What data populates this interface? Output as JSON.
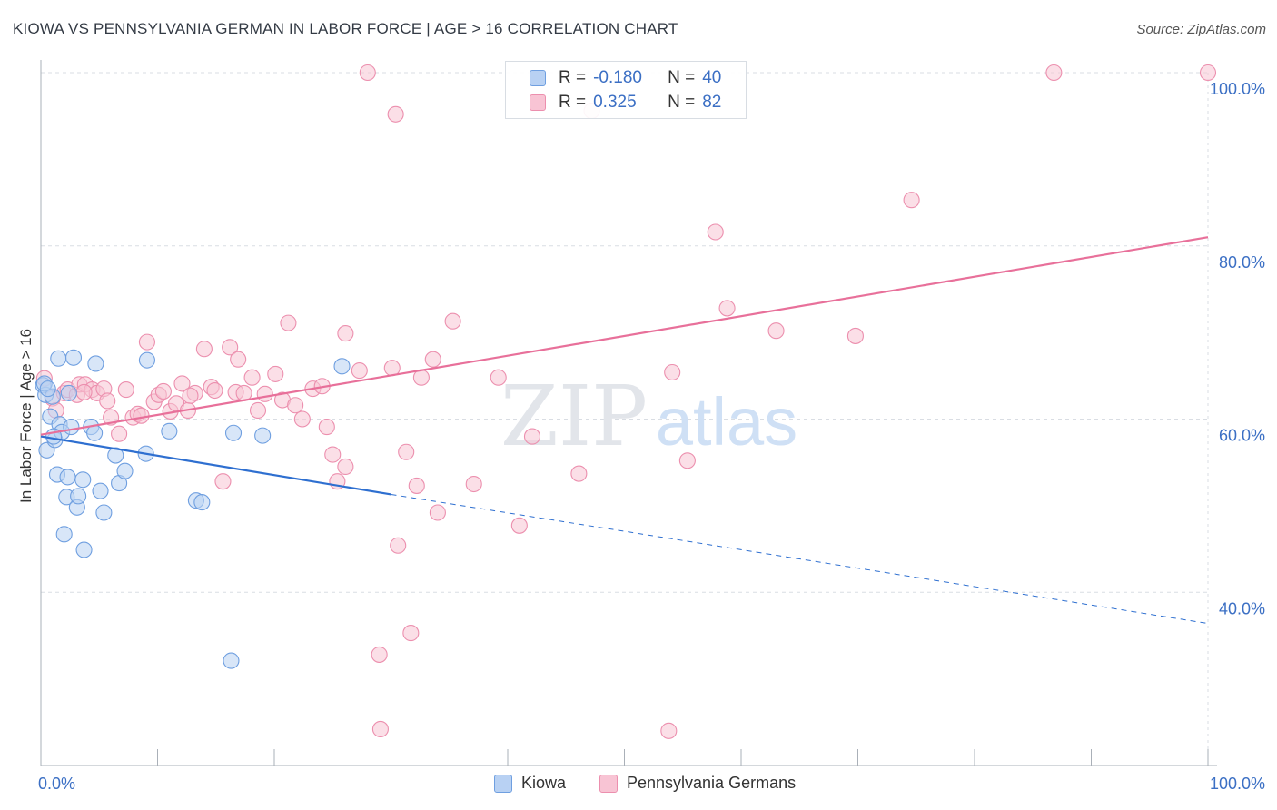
{
  "title": "KIOWA VS PENNSYLVANIA GERMAN IN LABOR FORCE | AGE > 16 CORRELATION CHART",
  "source": "Source: ZipAtlas.com",
  "watermark": {
    "zip": "ZIP",
    "atlas": "atlas"
  },
  "colors": {
    "kiowa_fill": "#b8d1f3",
    "kiowa_stroke": "#6f9fe0",
    "kiowa_line": "#2e6fd0",
    "pg_fill": "#f8c4d4",
    "pg_stroke": "#ec8fae",
    "pg_line": "#e8709a",
    "axis_label": "#3b6fc4",
    "grid": "#d9dde3"
  },
  "legend": {
    "r_label": "R =",
    "n_label": "N =",
    "kiowa": {
      "r": "-0.180",
      "n": "40"
    },
    "pg": {
      "r": "0.325",
      "n": "82"
    }
  },
  "bottom_legend": {
    "kiowa": "Kiowa",
    "pg": "Pennsylvania Germans"
  },
  "chart_data": {
    "type": "scatter",
    "title": "KIOWA VS PENNSYLVANIA GERMAN IN LABOR FORCE | AGE > 16 CORRELATION CHART",
    "ylabel": "In Labor Force | Age > 16",
    "xlabel": "",
    "xlim": [
      0,
      100
    ],
    "ylim": [
      20,
      100
    ],
    "x_tick_labels": [
      "0.0%",
      "100.0%"
    ],
    "y_ticks": [
      40,
      60,
      80,
      100
    ],
    "y_tick_labels": [
      "40.0%",
      "60.0%",
      "80.0%",
      "100.0%"
    ],
    "grid": true,
    "legend_position": "top-center",
    "series": [
      {
        "name": "Kiowa",
        "r": -0.18,
        "n": 40,
        "trend": {
          "x": [
            0,
            30
          ],
          "y": [
            58.0,
            51.3
          ]
        },
        "trend_dashed": {
          "x": [
            30,
            100
          ],
          "y": [
            51.3,
            36.4
          ]
        },
        "points": [
          [
            0.2,
            63.9
          ],
          [
            0.4,
            62.8
          ],
          [
            0.5,
            56.4
          ],
          [
            0.8,
            60.3
          ],
          [
            1.0,
            62.6
          ],
          [
            1.2,
            57.6
          ],
          [
            1.4,
            53.6
          ],
          [
            1.5,
            67.0
          ],
          [
            1.6,
            59.4
          ],
          [
            1.8,
            58.5
          ],
          [
            2.0,
            46.7
          ],
          [
            2.2,
            51.0
          ],
          [
            2.3,
            53.3
          ],
          [
            2.6,
            59.1
          ],
          [
            2.8,
            67.1
          ],
          [
            3.1,
            49.8
          ],
          [
            3.2,
            51.1
          ],
          [
            3.6,
            53.0
          ],
          [
            3.7,
            44.9
          ],
          [
            4.3,
            59.1
          ],
          [
            4.6,
            58.4
          ],
          [
            4.7,
            66.4
          ],
          [
            5.1,
            51.7
          ],
          [
            5.4,
            49.2
          ],
          [
            6.4,
            55.8
          ],
          [
            6.7,
            52.6
          ],
          [
            7.2,
            54.0
          ],
          [
            9.0,
            56.0
          ],
          [
            9.1,
            66.8
          ],
          [
            11.0,
            58.6
          ],
          [
            13.3,
            50.6
          ],
          [
            13.8,
            50.4
          ],
          [
            16.3,
            32.1
          ],
          [
            16.5,
            58.4
          ],
          [
            19.0,
            58.1
          ],
          [
            25.8,
            66.1
          ],
          [
            0.3,
            64.1
          ],
          [
            1.1,
            58.0
          ],
          [
            2.4,
            63.0
          ],
          [
            0.6,
            63.5
          ]
        ]
      },
      {
        "name": "Pennsylvania Germans",
        "r": 0.325,
        "n": 82,
        "trend": {
          "x": [
            0,
            100
          ],
          "y": [
            58.2,
            81.0
          ]
        },
        "points": [
          [
            0.3,
            64.7
          ],
          [
            1.0,
            62.4
          ],
          [
            1.3,
            61.0
          ],
          [
            2.0,
            63.0
          ],
          [
            2.3,
            63.4
          ],
          [
            3.1,
            62.8
          ],
          [
            3.3,
            64.0
          ],
          [
            3.8,
            64.0
          ],
          [
            4.4,
            63.4
          ],
          [
            4.8,
            63.0
          ],
          [
            5.4,
            63.5
          ],
          [
            5.7,
            62.1
          ],
          [
            6.0,
            60.2
          ],
          [
            6.7,
            58.3
          ],
          [
            7.3,
            63.4
          ],
          [
            7.9,
            60.2
          ],
          [
            8.3,
            60.6
          ],
          [
            8.6,
            60.4
          ],
          [
            9.1,
            68.9
          ],
          [
            9.7,
            62.0
          ],
          [
            10.1,
            62.8
          ],
          [
            10.5,
            63.2
          ],
          [
            11.1,
            60.9
          ],
          [
            11.6,
            61.8
          ],
          [
            12.1,
            64.1
          ],
          [
            12.6,
            61.0
          ],
          [
            13.2,
            63.0
          ],
          [
            14.0,
            68.1
          ],
          [
            14.6,
            63.7
          ],
          [
            14.9,
            63.3
          ],
          [
            15.6,
            52.8
          ],
          [
            16.2,
            68.3
          ],
          [
            16.7,
            63.1
          ],
          [
            16.9,
            66.9
          ],
          [
            17.4,
            63.0
          ],
          [
            18.1,
            64.8
          ],
          [
            18.6,
            61.0
          ],
          [
            19.2,
            62.9
          ],
          [
            20.1,
            65.2
          ],
          [
            20.7,
            62.2
          ],
          [
            21.2,
            71.1
          ],
          [
            21.8,
            61.6
          ],
          [
            22.4,
            60.0
          ],
          [
            23.3,
            63.5
          ],
          [
            24.1,
            63.8
          ],
          [
            24.5,
            59.1
          ],
          [
            25.0,
            55.9
          ],
          [
            25.4,
            52.8
          ],
          [
            26.1,
            54.5
          ],
          [
            26.1,
            69.9
          ],
          [
            27.3,
            65.6
          ],
          [
            28.0,
            100.0
          ],
          [
            29.1,
            24.2
          ],
          [
            29.0,
            32.8
          ],
          [
            30.1,
            65.9
          ],
          [
            30.4,
            95.2
          ],
          [
            30.6,
            45.4
          ],
          [
            31.3,
            56.2
          ],
          [
            31.7,
            35.3
          ],
          [
            32.2,
            52.3
          ],
          [
            32.6,
            64.8
          ],
          [
            33.6,
            66.9
          ],
          [
            34.0,
            49.2
          ],
          [
            35.3,
            71.3
          ],
          [
            37.1,
            52.5
          ],
          [
            39.2,
            64.8
          ],
          [
            41.0,
            47.7
          ],
          [
            42.1,
            58.0
          ],
          [
            46.1,
            53.7
          ],
          [
            47.2,
            95.6
          ],
          [
            53.8,
            24.0
          ],
          [
            54.1,
            65.4
          ],
          [
            55.4,
            55.2
          ],
          [
            57.8,
            81.6
          ],
          [
            58.8,
            72.8
          ],
          [
            63.0,
            70.2
          ],
          [
            69.8,
            69.6
          ],
          [
            74.6,
            85.3
          ],
          [
            86.8,
            100.0
          ],
          [
            100.0,
            100.0
          ],
          [
            3.7,
            63.1
          ],
          [
            12.8,
            62.7
          ]
        ]
      }
    ]
  }
}
